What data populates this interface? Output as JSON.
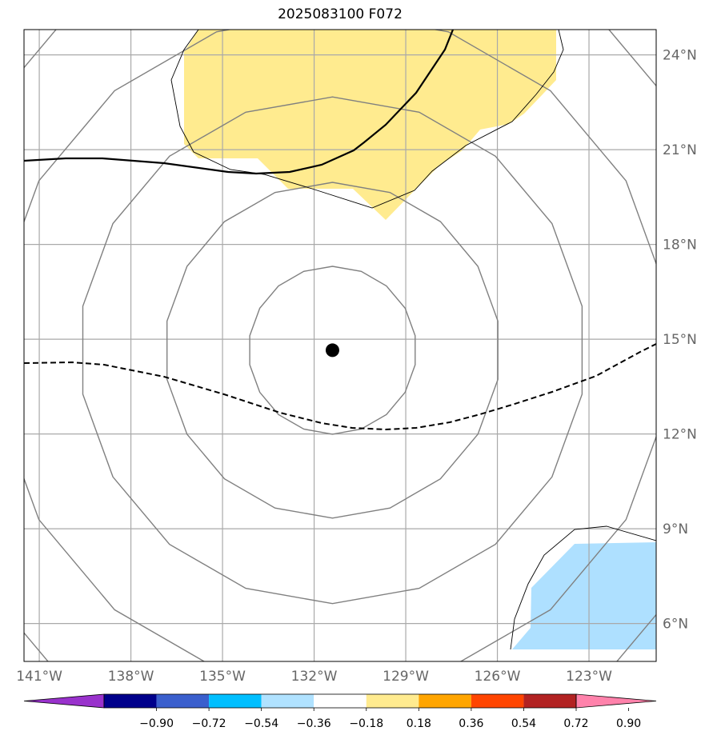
{
  "title": "2025083100 F072",
  "map": {
    "lon_range": [
      -141.5,
      -120.8
    ],
    "lat_range": [
      4.8,
      24.8
    ],
    "grid": true,
    "lon_ticks": [
      {
        "lon": -141,
        "label": "141°W"
      },
      {
        "lon": -138,
        "label": "138°W"
      },
      {
        "lon": -135,
        "label": "135°W"
      },
      {
        "lon": -132,
        "label": "132°W"
      },
      {
        "lon": -129,
        "label": "129°W"
      },
      {
        "lon": -126,
        "label": "126°W"
      },
      {
        "lon": -123,
        "label": "123°W"
      }
    ],
    "lat_ticks": [
      {
        "lat": 24,
        "label": "24°N"
      },
      {
        "lat": 21,
        "label": "21°N"
      },
      {
        "lat": 18,
        "label": "18°N"
      },
      {
        "lat": 15,
        "label": "15°N"
      },
      {
        "lat": 12,
        "label": "12°N"
      },
      {
        "lat": 9,
        "label": "9°N"
      },
      {
        "lat": 6,
        "label": "6°N"
      }
    ],
    "storm_center": {
      "lon": -131.4,
      "lat": 14.65
    },
    "range_rings_deg": [
      2.75,
      5.5,
      8.3,
      11.1,
      13.9
    ],
    "positive_region_color": "#ffeb8f",
    "negative_region_color": "#aee0ff"
  },
  "colorbar": {
    "colors": [
      "#9932cc",
      "#00008b",
      "#3a5fcd",
      "#00bfff",
      "#b0e2ff",
      "#ffffff",
      "#ffeb8f",
      "#ffa500",
      "#ff4500",
      "#b22222",
      "#ff82ab"
    ],
    "ticks": [
      "−0.90",
      "−0.72",
      "−0.54",
      "−0.36",
      "−0.18",
      "0.18",
      "0.36",
      "0.54",
      "0.72",
      "0.90"
    ]
  }
}
